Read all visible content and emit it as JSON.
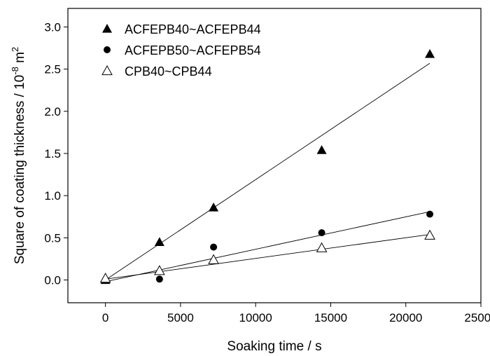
{
  "chart_data": {
    "type": "scatter",
    "xlabel": "Soaking time / s",
    "ylabel_main": "Square of coating thickness / 10",
    "ylabel_exponent": "-8",
    "ylabel_unit": " m",
    "ylabel_unit_exponent": "2",
    "xlim": [
      -2500,
      25000
    ],
    "ylim": [
      -0.27,
      3.22
    ],
    "xticks": [
      0,
      5000,
      10000,
      15000,
      20000,
      25000
    ],
    "yticks": [
      0.0,
      0.5,
      1.0,
      1.5,
      2.0,
      2.5,
      3.0
    ],
    "xtick_labels": [
      "0",
      "5000",
      "10000",
      "15000",
      "20000",
      "25000"
    ],
    "ytick_labels": [
      "0.0",
      "0.5",
      "1.0",
      "1.5",
      "2.0",
      "2.5",
      "3.0"
    ],
    "grid": false,
    "legend_position": "top-left",
    "series": [
      {
        "name": "ACFEPB40~ACFEPB44",
        "marker": "filled-triangle",
        "x": [
          0,
          3600,
          7200,
          14400,
          21600
        ],
        "y": [
          0.0,
          0.45,
          0.86,
          1.54,
          2.68
        ],
        "fit_line": {
          "x": [
            0,
            21600
          ],
          "y": [
            0.0,
            2.57
          ]
        }
      },
      {
        "name": "ACFEPB50~ACFEPB54",
        "marker": "filled-circle",
        "x": [
          0,
          3600,
          7200,
          14400,
          21600
        ],
        "y": [
          0.0,
          0.01,
          0.39,
          0.56,
          0.78
        ],
        "fit_line": {
          "x": [
            0,
            21600
          ],
          "y": [
            -0.02,
            0.81
          ]
        }
      },
      {
        "name": "CPB40~CPB44",
        "marker": "open-triangle",
        "x": [
          0,
          3600,
          7200,
          14400,
          21600
        ],
        "y": [
          0.02,
          0.11,
          0.24,
          0.38,
          0.53
        ],
        "fit_line": {
          "x": [
            0,
            21600
          ],
          "y": [
            0.01,
            0.54
          ]
        }
      }
    ]
  }
}
